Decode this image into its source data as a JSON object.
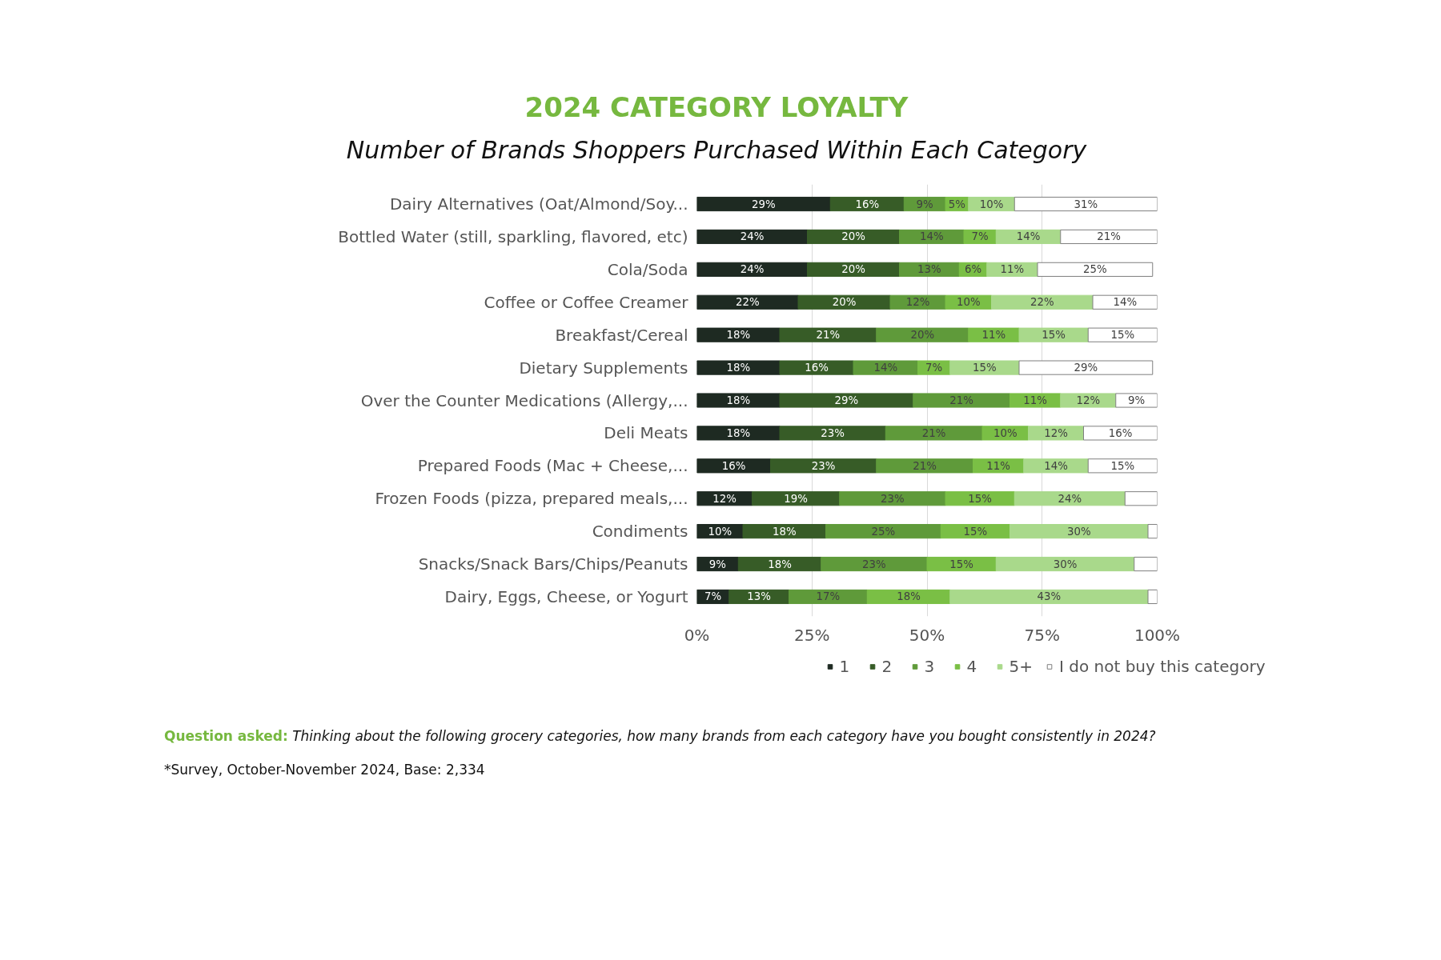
{
  "chart_data": {
    "type": "bar",
    "orientation": "horizontal",
    "stacked": true,
    "title": "2024 CATEGORY LOYALTY",
    "subtitle": "Number of Brands Shoppers Purchased Within Each Category",
    "categories": [
      "Dairy Alternatives (Oat/Almond/Soy...",
      "Bottled Water (still, sparkling, flavored, etc)",
      "Cola/Soda",
      "Coffee or Coffee Creamer",
      "Breakfast/Cereal",
      "Dietary Supplements",
      "Over the Counter Medications (Allergy,...",
      "Deli Meats",
      "Prepared Foods (Mac + Cheese,...",
      "Frozen Foods (pizza, prepared meals,...",
      "Condiments",
      "Snacks/Snack Bars/Chips/Peanuts",
      "Dairy, Eggs, Cheese, or Yogurt"
    ],
    "series": [
      {
        "name": "1",
        "color": "#1e2a22",
        "values": [
          29,
          24,
          24,
          22,
          18,
          18,
          18,
          18,
          16,
          12,
          10,
          9,
          7
        ],
        "value_labels": [
          "29%",
          "24%",
          "24%",
          "22%",
          "18%",
          "18%",
          "18%",
          "18%",
          "16%",
          "12%",
          "10%",
          "9%",
          "7%"
        ]
      },
      {
        "name": "2",
        "color": "#375c27",
        "values": [
          16,
          20,
          20,
          20,
          21,
          16,
          29,
          23,
          23,
          19,
          18,
          18,
          13
        ],
        "value_labels": [
          "16%",
          "20%",
          "20%",
          "20%",
          "21%",
          "16%",
          "29%",
          "23%",
          "23%",
          "19%",
          "18%",
          "18%",
          "13%"
        ]
      },
      {
        "name": "3",
        "color": "#5f9a3a",
        "values": [
          9,
          14,
          13,
          12,
          20,
          14,
          21,
          21,
          21,
          23,
          25,
          23,
          17
        ],
        "value_labels": [
          "9%",
          "14%",
          "13%",
          "12%",
          "20%",
          "14%",
          "21%",
          "21%",
          "21%",
          "23%",
          "25%",
          "23%",
          "17%"
        ]
      },
      {
        "name": "4",
        "color": "#7abf45",
        "values": [
          5,
          7,
          6,
          10,
          11,
          7,
          11,
          10,
          11,
          15,
          15,
          15,
          18
        ],
        "value_labels": [
          "5%",
          "7%",
          "6%",
          "10%",
          "11%",
          "7%",
          "11%",
          "10%",
          "11%",
          "15%",
          "15%",
          "15%",
          "18%"
        ]
      },
      {
        "name": "5+",
        "color": "#a9d98b",
        "values": [
          10,
          14,
          11,
          22,
          15,
          15,
          12,
          12,
          14,
          24,
          30,
          30,
          43
        ],
        "value_labels": [
          "10%",
          "14%",
          "11%",
          "22%",
          "15%",
          "15%",
          "12%",
          "12%",
          "14%",
          "24%",
          "30%",
          "30%",
          "43%"
        ]
      },
      {
        "name": "I do not buy this category",
        "color": "#ffffff",
        "values": [
          31,
          21,
          25,
          14,
          15,
          29,
          9,
          16,
          15,
          7,
          2,
          5,
          2
        ],
        "value_labels": [
          "31%",
          "21%",
          "25%",
          "14%",
          "15%",
          "29%",
          "9%",
          "16%",
          "15%",
          null,
          null,
          null,
          null
        ]
      }
    ],
    "xlim": [
      0,
      100
    ],
    "xticks": [
      {
        "value": 0,
        "label": "0%"
      },
      {
        "value": 25,
        "label": "25%"
      },
      {
        "value": 50,
        "label": "50%"
      },
      {
        "value": 75,
        "label": "75%"
      },
      {
        "value": 100,
        "label": "100%"
      }
    ],
    "grid": "x",
    "legend": "bottom",
    "annotations": [
      "Question asked: Thinking about the following grocery categories, how many brands from each category have you bought consistently in 2024?",
      "*Survey, October-November 2024, Base: 2,334"
    ]
  }
}
